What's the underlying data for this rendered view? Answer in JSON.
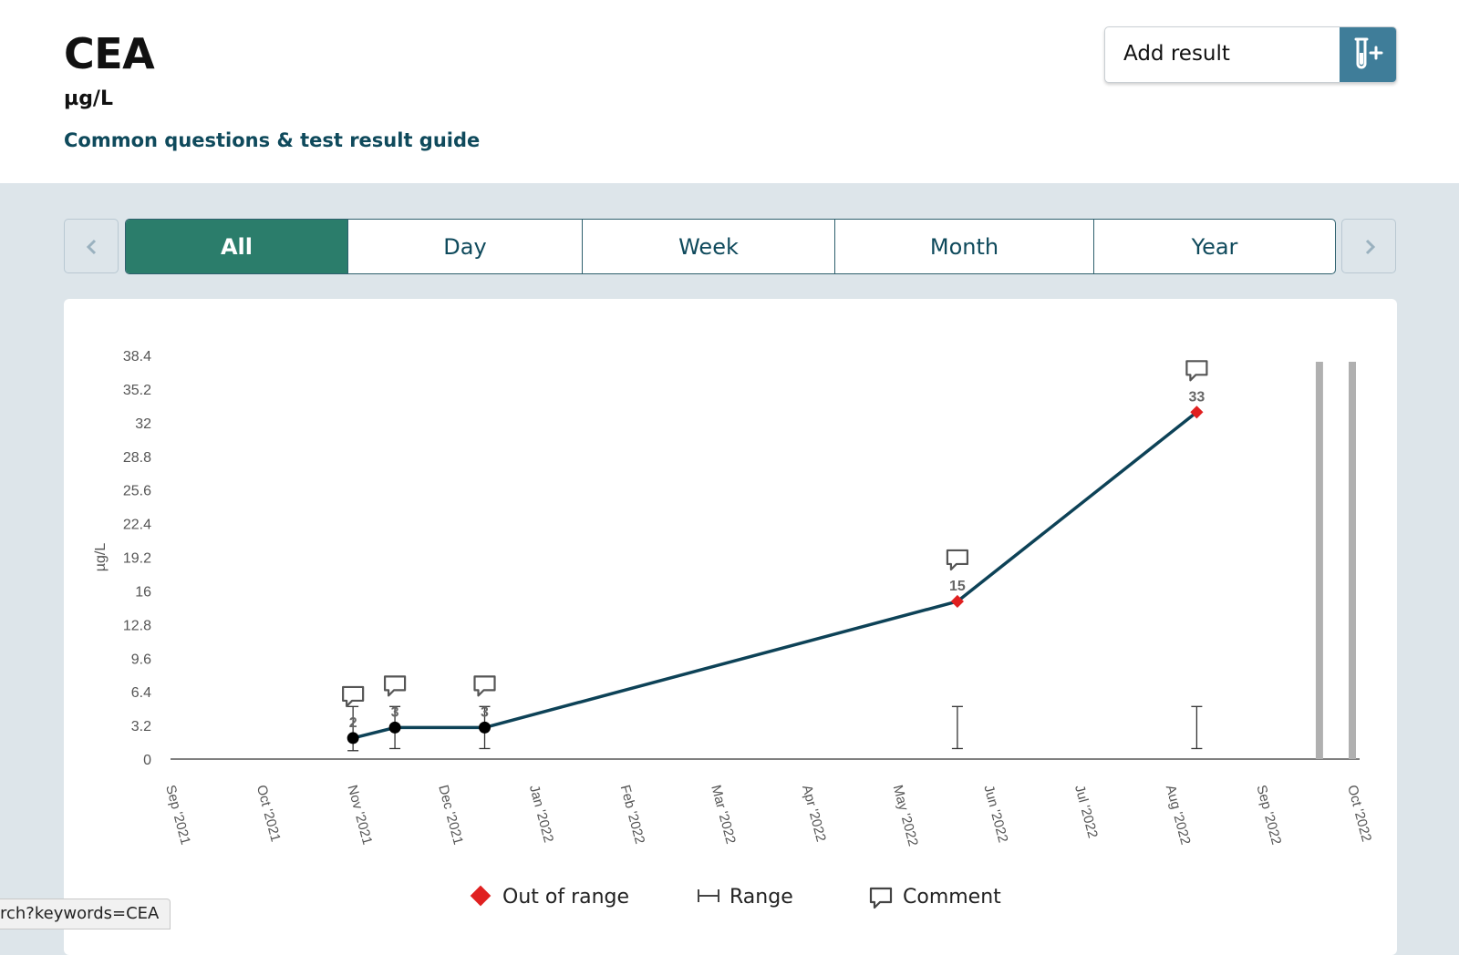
{
  "header": {
    "title": "CEA",
    "unit": "µg/L",
    "guide_link": "Common questions & test result guide",
    "add_result_label": "Add result"
  },
  "tabs": [
    {
      "label": "All",
      "active": true
    },
    {
      "label": "Day",
      "active": false
    },
    {
      "label": "Week",
      "active": false
    },
    {
      "label": "Month",
      "active": false
    },
    {
      "label": "Year",
      "active": false
    }
  ],
  "status_bar": {
    "text": "rch?keywords=CEA"
  },
  "chart_data": {
    "type": "line",
    "ylabel": "µg/L",
    "ylim": [
      0,
      38.4
    ],
    "yticks": [
      "0",
      "3.2",
      "6.4",
      "9.6",
      "12.8",
      "16",
      "19.2",
      "22.4",
      "25.6",
      "28.8",
      "32",
      "35.2",
      "38.4"
    ],
    "xticks": [
      "Sep '2021",
      "Oct '2021",
      "Nov '2021",
      "Dec '2021",
      "Jan '2022",
      "Feb '2022",
      "Mar '2022",
      "Apr '2022",
      "May '2022",
      "Jun '2022",
      "Jul '2022",
      "Aug '2022",
      "Sep '2022",
      "Oct '2022"
    ],
    "xlim": [
      "2021-09-01",
      "2022-10-01"
    ],
    "points": [
      {
        "date": "2021-11-01",
        "value": 2,
        "out_of_range": false,
        "comment": true,
        "range": [
          0.8,
          5
        ]
      },
      {
        "date": "2021-11-15",
        "value": 3,
        "out_of_range": false,
        "comment": true,
        "range": [
          1,
          5
        ]
      },
      {
        "date": "2021-12-15",
        "value": 3,
        "out_of_range": false,
        "comment": true,
        "range": [
          1,
          5
        ]
      },
      {
        "date": "2022-05-22",
        "value": 15,
        "out_of_range": true,
        "comment": true,
        "range": [
          1,
          5
        ]
      },
      {
        "date": "2022-08-10",
        "value": 33,
        "out_of_range": true,
        "comment": true,
        "range": [
          1,
          5
        ]
      }
    ],
    "markers_at": [
      "2022-09-20",
      "2022-10-01"
    ],
    "legend": [
      "Out of range",
      "Range",
      "Comment"
    ],
    "legend_position": "bottom",
    "colors": {
      "line": "#0d4257",
      "out_of_range": "#e02020",
      "in_range": "#000000",
      "marker": "#b0b0b0",
      "axis": "#555555"
    }
  }
}
